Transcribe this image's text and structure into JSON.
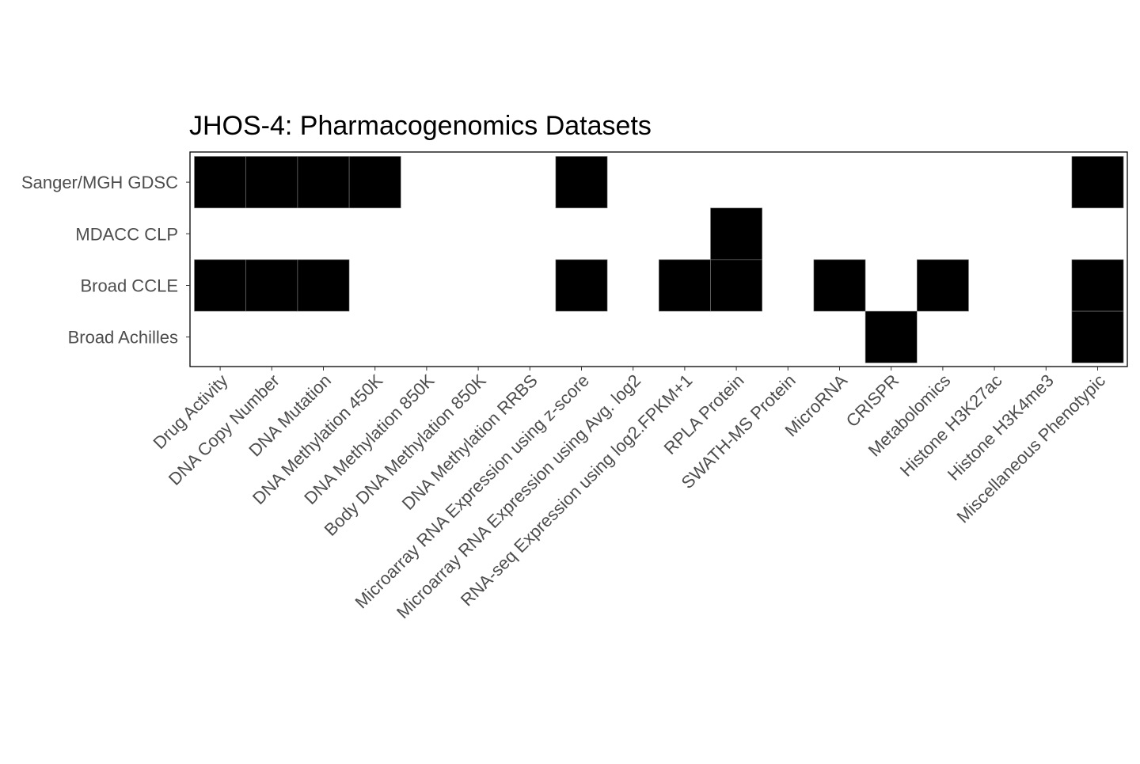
{
  "chart_data": {
    "type": "heatmap",
    "title": "JHOS-4: Pharmacogenomics Datasets",
    "xlabel": "",
    "ylabel": "",
    "x_categories": [
      "Drug Activity",
      "DNA Copy Number",
      "DNA Mutation",
      "DNA Methylation 450K",
      "DNA Methylation 850K",
      "Body DNA Methylation 850K",
      "DNA Methylation RRBS",
      "Microarray RNA Expression using z-score",
      "Microarray RNA Expression using Avg. log2",
      "RNA-seq Expression using log2.FPKM+1",
      "RPLA Protein",
      "SWATH-MS Protein",
      "MicroRNA",
      "CRISPR",
      "Metabolomics",
      "Histone H3K27ac",
      "Histone H3K4me3",
      "Miscellaneous Phenotypic"
    ],
    "y_categories": [
      "Sanger/MGH GDSC",
      "MDACC CLP",
      "Broad CCLE",
      "Broad Achilles"
    ],
    "values": [
      [
        1,
        1,
        1,
        1,
        0,
        0,
        0,
        1,
        0,
        0,
        0,
        0,
        0,
        0,
        0,
        0,
        0,
        1
      ],
      [
        0,
        0,
        0,
        0,
        0,
        0,
        0,
        0,
        0,
        0,
        1,
        0,
        0,
        0,
        0,
        0,
        0,
        0
      ],
      [
        1,
        1,
        1,
        0,
        0,
        0,
        0,
        1,
        0,
        1,
        1,
        0,
        1,
        0,
        1,
        0,
        0,
        1
      ],
      [
        0,
        0,
        0,
        0,
        0,
        0,
        0,
        0,
        0,
        0,
        0,
        0,
        0,
        1,
        0,
        0,
        0,
        1
      ]
    ],
    "legend": "none",
    "grid": false,
    "colors": {
      "present": "#000000",
      "absent": "#ffffff",
      "tile_border": "#7f7f7f",
      "panel_border": "#000000"
    }
  }
}
